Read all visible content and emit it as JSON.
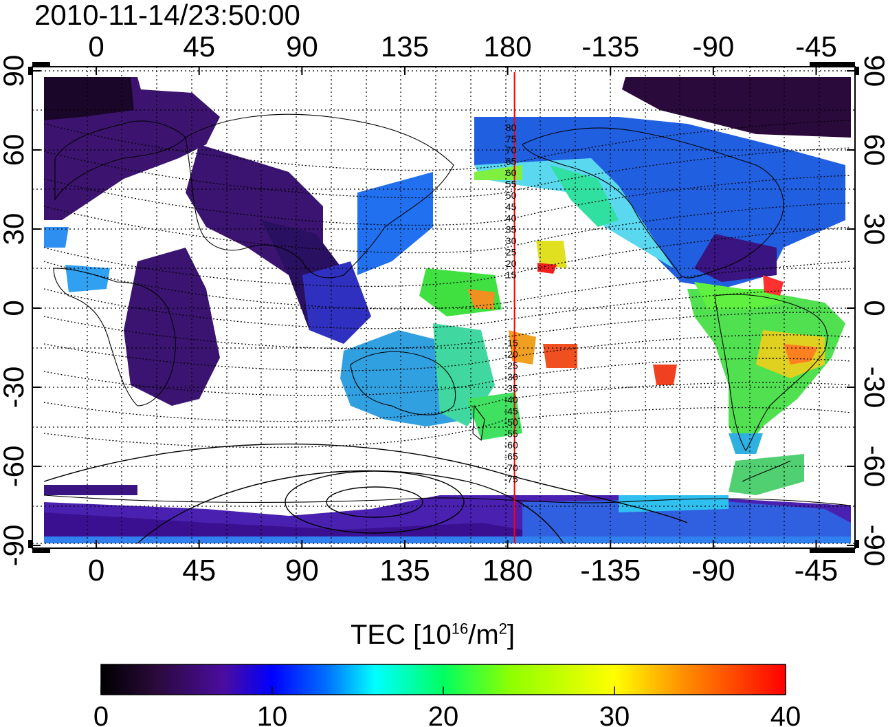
{
  "title": "2010-11-14/23:50:00",
  "map": {
    "lon_ticks": [
      "0",
      "45",
      "90",
      "135",
      "180",
      "-135",
      "-90",
      "-45"
    ],
    "lat_ticks": [
      "90",
      "60",
      "30",
      "0",
      "-30",
      "-60",
      "-90"
    ],
    "meridian_lon": 183,
    "meridian_color": "#ff0000",
    "meridian_labels": [
      "80",
      "75",
      "70",
      "65",
      "60",
      "55",
      "50",
      "45",
      "40",
      "35",
      "30",
      "25",
      "20",
      "15",
      "-15",
      "-20",
      "-25",
      "-30",
      "-35",
      "-40",
      "-45",
      "-50",
      "-55",
      "-60",
      "-65",
      "-70",
      "-75"
    ]
  },
  "colorbar": {
    "label_main": "TEC  [10",
    "label_sup1": "16",
    "label_mid": "/m",
    "label_sup2": "2",
    "label_end": "]",
    "min": 0,
    "max": 40,
    "ticks": [
      "0",
      "10",
      "20",
      "30",
      "40"
    ],
    "colormap": "rainbow: black-purple-blue-cyan-green-yellow-orange-red"
  }
}
